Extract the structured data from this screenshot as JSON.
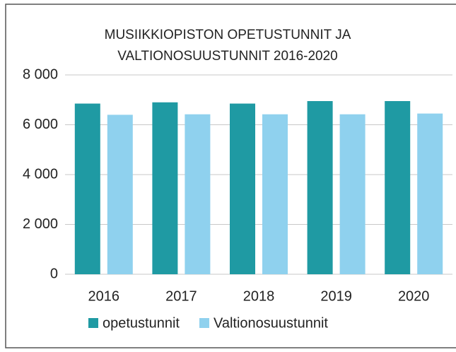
{
  "chart_data": {
    "type": "bar",
    "title": [
      "MUSIIKKIOPISTON OPETUSTUNNIT JA",
      "VALTIONOSUUSTUNNIT 2016-2020"
    ],
    "categories": [
      "2016",
      "2017",
      "2018",
      "2019",
      "2020"
    ],
    "series": [
      {
        "name": "opetustunnit",
        "color": "#1f9aa3",
        "values": [
          6850,
          6900,
          6850,
          6950,
          6950
        ]
      },
      {
        "name": "Valtionosuustunnit",
        "color": "#8fd1ee",
        "values": [
          6400,
          6420,
          6420,
          6420,
          6450
        ]
      }
    ],
    "ylim": [
      0,
      8000
    ],
    "yticks": [
      0,
      {
        "value": 2000,
        "label": "2 000"
      },
      {
        "value": 4000,
        "label": "4 000"
      },
      {
        "value": 6000,
        "label": "6 000"
      },
      {
        "value": 8000,
        "label": "8 000"
      }
    ],
    "grid": true,
    "legend": "bottom"
  }
}
